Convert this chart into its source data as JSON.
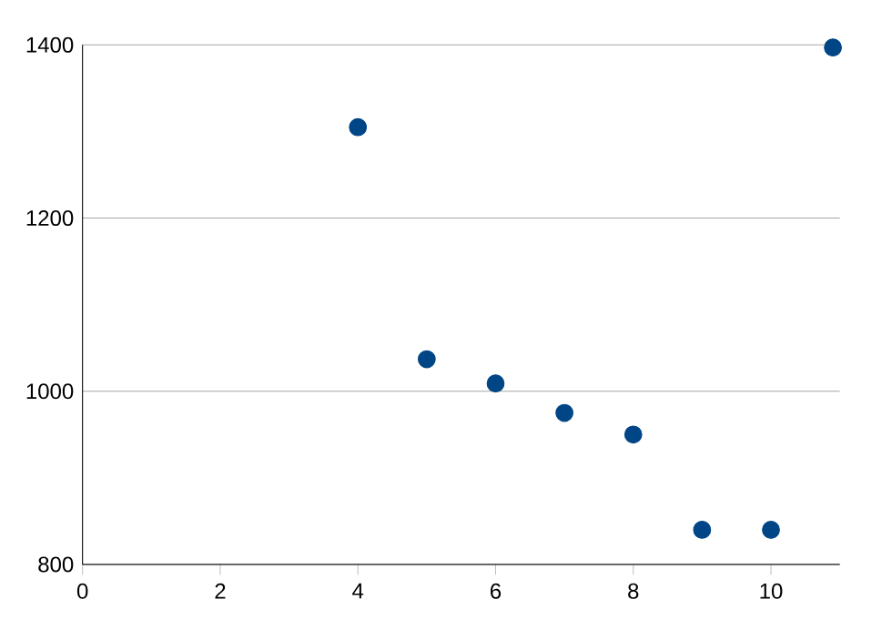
{
  "chart_data": {
    "type": "scatter",
    "x": [
      4,
      5,
      6,
      7,
      8,
      9,
      10,
      10.9
    ],
    "values": [
      1305,
      1037,
      1009,
      975,
      950,
      840,
      840,
      1397
    ],
    "color": "#004586",
    "marker": "circle",
    "xlim": [
      0,
      11
    ],
    "xticks": [
      0,
      2,
      4,
      6,
      8,
      10
    ],
    "ylim": [
      800,
      1400
    ],
    "yticks": [
      800,
      1000,
      1200,
      1400
    ],
    "grid": "y"
  }
}
